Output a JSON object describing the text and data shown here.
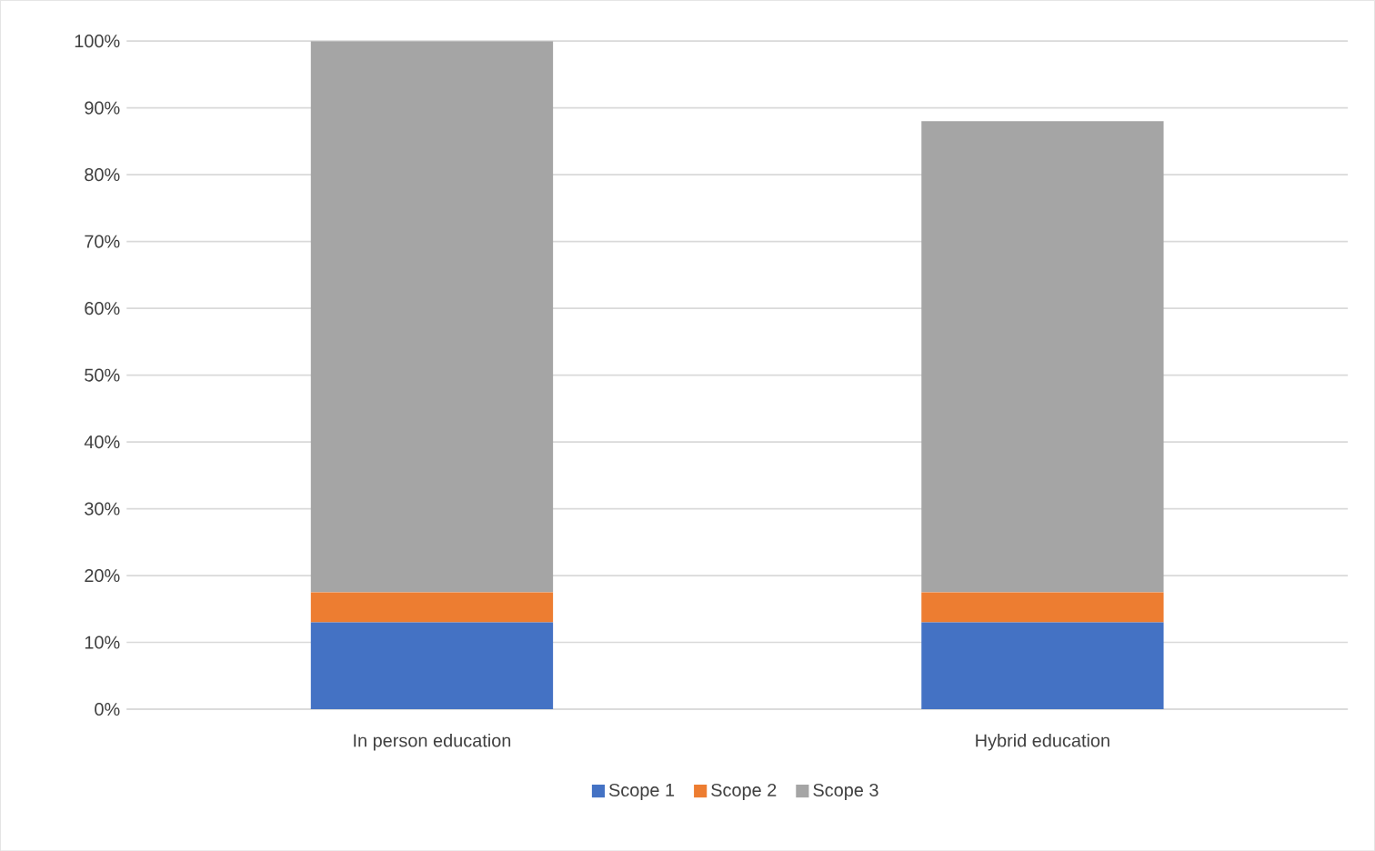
{
  "chart_data": {
    "type": "bar",
    "stacked": true,
    "categories": [
      "In person education",
      "Hybrid education"
    ],
    "series": [
      {
        "name": "Scope 1",
        "color": "#4472c4",
        "values": [
          13,
          13
        ]
      },
      {
        "name": "Scope 2",
        "color": "#ed7d31",
        "values": [
          4.5,
          4.5
        ]
      },
      {
        "name": "Scope 3",
        "color": "#a5a5a5",
        "values": [
          82.5,
          70.5
        ]
      }
    ],
    "ylim": [
      0,
      100
    ],
    "yticks": [
      {
        "value": 0,
        "label": "0%"
      },
      {
        "value": 10,
        "label": "10%"
      },
      {
        "value": 20,
        "label": "20%"
      },
      {
        "value": 30,
        "label": "30%"
      },
      {
        "value": 40,
        "label": "40%"
      },
      {
        "value": 50,
        "label": "50%"
      },
      {
        "value": 60,
        "label": "60%"
      },
      {
        "value": 70,
        "label": "70%"
      },
      {
        "value": 80,
        "label": "80%"
      },
      {
        "value": 90,
        "label": "90%"
      },
      {
        "value": 100,
        "label": "100%"
      }
    ],
    "grid": "y",
    "legend": "bottom"
  }
}
